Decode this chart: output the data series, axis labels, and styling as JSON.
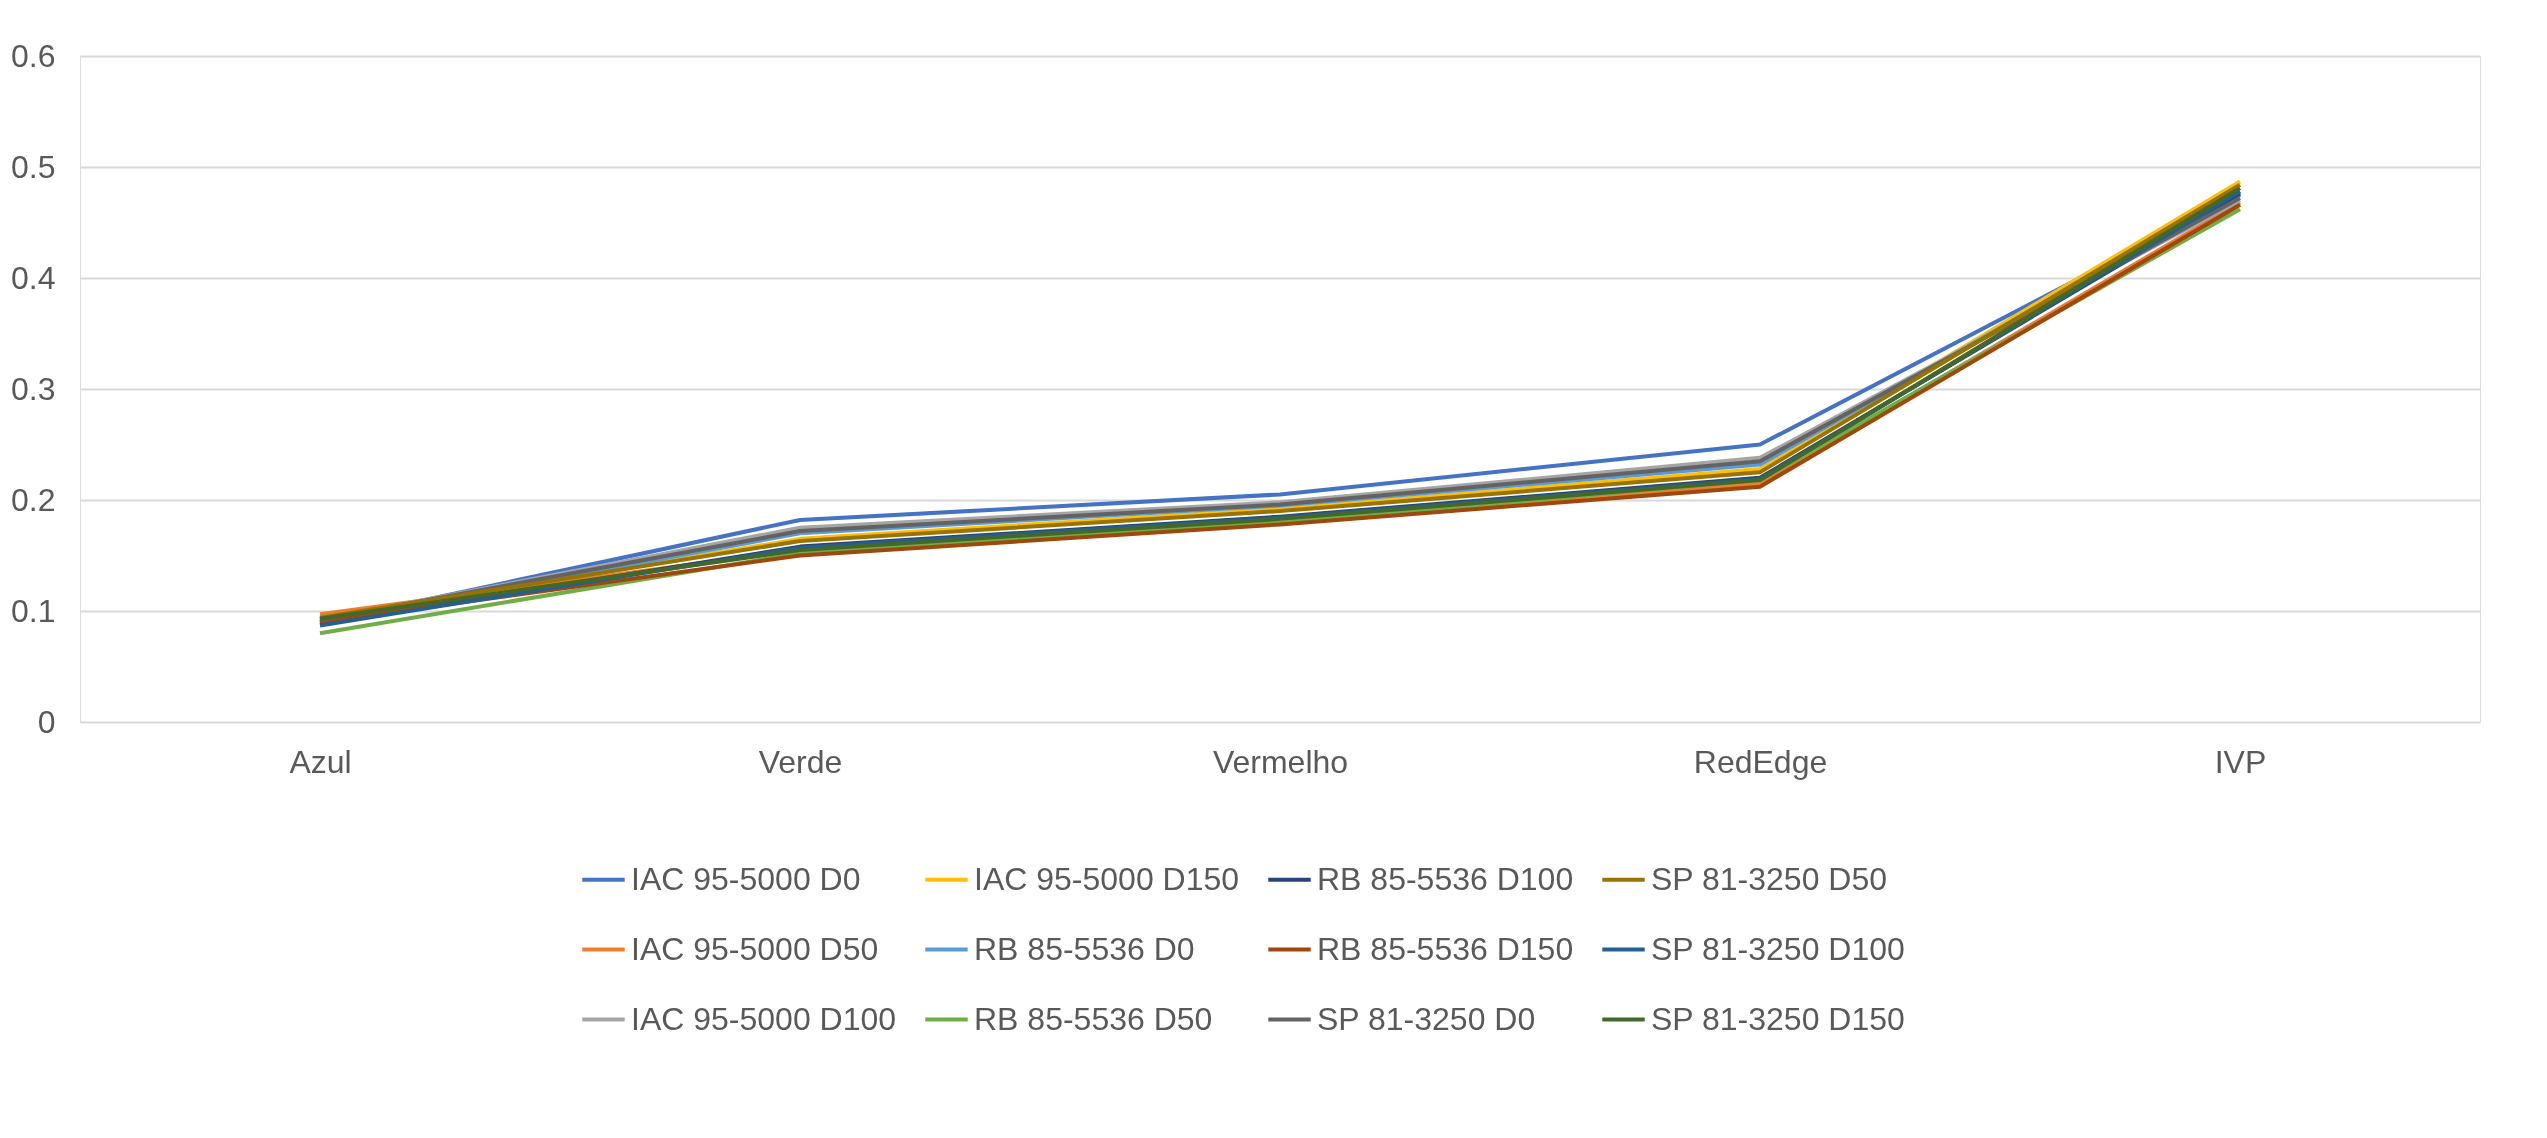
{
  "chart_data": {
    "type": "line",
    "categories": [
      "Azul",
      "Verde",
      "Vermelho",
      "RedEdge",
      "IVP"
    ],
    "ylim": [
      0,
      0.6
    ],
    "yticks": [
      0,
      0.1,
      0.2,
      0.3,
      0.4,
      0.5,
      0.6
    ],
    "grid": "y",
    "legend": "bottom",
    "marker": "none",
    "line_style": "solid",
    "series": [
      {
        "name": "IAC 95-5000 D0",
        "color": "#4472c4",
        "values": [
          0.09,
          0.182,
          0.205,
          0.25,
          0.475
        ]
      },
      {
        "name": "IAC 95-5000 D50",
        "color": "#ed7d31",
        "values": [
          0.097,
          0.155,
          0.18,
          0.215,
          0.468
        ]
      },
      {
        "name": "IAC 95-5000 D100",
        "color": "#a5a5a5",
        "values": [
          0.092,
          0.175,
          0.198,
          0.238,
          0.47
        ]
      },
      {
        "name": "IAC 95-5000 D150",
        "color": "#ffc000",
        "values": [
          0.093,
          0.165,
          0.192,
          0.228,
          0.487
        ]
      },
      {
        "name": "RB 85-5536 D0",
        "color": "#5b9bd5",
        "values": [
          0.09,
          0.17,
          0.195,
          0.232,
          0.478
        ]
      },
      {
        "name": "RB 85-5536 D50",
        "color": "#70ad47",
        "values": [
          0.08,
          0.152,
          0.18,
          0.218,
          0.462
        ]
      },
      {
        "name": "RB 85-5536 D100",
        "color": "#264478",
        "values": [
          0.088,
          0.158,
          0.185,
          0.22,
          0.476
        ]
      },
      {
        "name": "RB 85-5536 D150",
        "color": "#9e480e",
        "values": [
          0.09,
          0.15,
          0.178,
          0.212,
          0.466
        ]
      },
      {
        "name": "SP 81-3250 D0",
        "color": "#636363",
        "values": [
          0.092,
          0.172,
          0.196,
          0.235,
          0.472
        ]
      },
      {
        "name": "SP 81-3250 D50",
        "color": "#997300",
        "values": [
          0.094,
          0.163,
          0.19,
          0.225,
          0.484
        ]
      },
      {
        "name": "SP 81-3250 D100",
        "color": "#255e91",
        "values": [
          0.087,
          0.157,
          0.184,
          0.219,
          0.478
        ]
      },
      {
        "name": "SP 81-3250 D150",
        "color": "#43682b",
        "values": [
          0.093,
          0.155,
          0.183,
          0.218,
          0.481
        ]
      }
    ]
  }
}
